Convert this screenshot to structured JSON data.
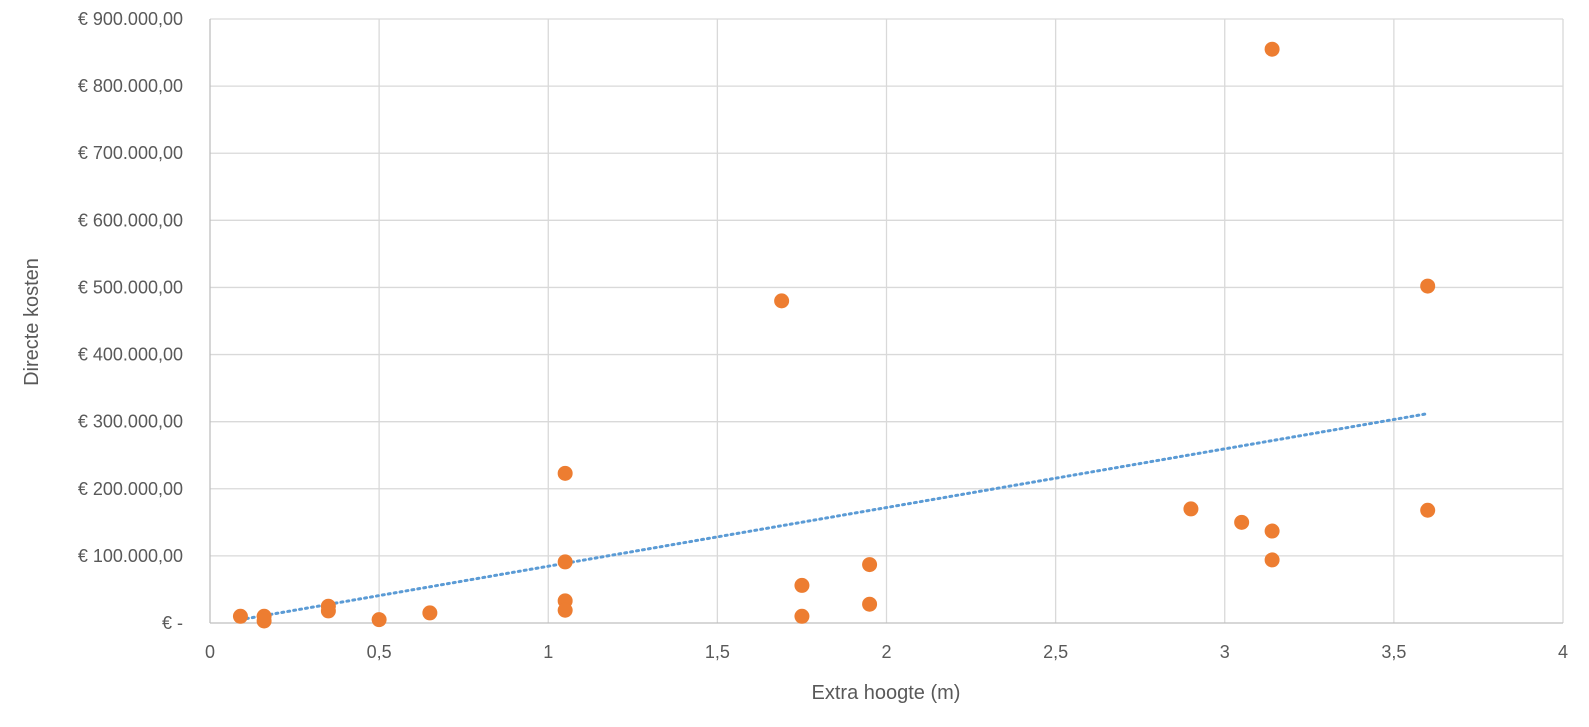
{
  "chart_data": {
    "type": "scatter",
    "title": "",
    "xlabel": "Extra hoogte (m)",
    "ylabel": "Directe kosten",
    "xlim": [
      0,
      4
    ],
    "ylim": [
      0,
      900000
    ],
    "x_ticks": [
      {
        "value": 0,
        "label": "0"
      },
      {
        "value": 0.5,
        "label": "0,5"
      },
      {
        "value": 1,
        "label": "1"
      },
      {
        "value": 1.5,
        "label": "1,5"
      },
      {
        "value": 2,
        "label": "2"
      },
      {
        "value": 2.5,
        "label": "2,5"
      },
      {
        "value": 3,
        "label": "3"
      },
      {
        "value": 3.5,
        "label": "3,5"
      },
      {
        "value": 4,
        "label": "4"
      }
    ],
    "y_ticks": [
      {
        "value": 0,
        "label": "€ -"
      },
      {
        "value": 100000,
        "label": "€ 100.000,00"
      },
      {
        "value": 200000,
        "label": "€ 200.000,00"
      },
      {
        "value": 300000,
        "label": "€ 300.000,00"
      },
      {
        "value": 400000,
        "label": "€ 400.000,00"
      },
      {
        "value": 500000,
        "label": "€ 500.000,00"
      },
      {
        "value": 600000,
        "label": "€ 600.000,00"
      },
      {
        "value": 700000,
        "label": "€ 700.000,00"
      },
      {
        "value": 800000,
        "label": "€ 800.000,00"
      },
      {
        "value": 900000,
        "label": "€ 900.000,00"
      }
    ],
    "grid": true,
    "legend": "none",
    "series": [
      {
        "color": "#ed7d31",
        "points": [
          [
            0.09,
            10000
          ],
          [
            0.16,
            10000
          ],
          [
            0.16,
            3000
          ],
          [
            0.35,
            25000
          ],
          [
            0.35,
            18000
          ],
          [
            0.5,
            5000
          ],
          [
            0.65,
            15000
          ],
          [
            1.05,
            223000
          ],
          [
            1.05,
            91000
          ],
          [
            1.05,
            33000
          ],
          [
            1.05,
            19000
          ],
          [
            1.69,
            480000
          ],
          [
            1.75,
            56000
          ],
          [
            1.75,
            10000
          ],
          [
            1.95,
            87000
          ],
          [
            1.95,
            28000
          ],
          [
            2.9,
            170000
          ],
          [
            3.05,
            150000
          ],
          [
            3.14,
            855000
          ],
          [
            3.14,
            137000
          ],
          [
            3.14,
            94000
          ],
          [
            3.6,
            502000
          ],
          [
            3.6,
            168000
          ]
        ]
      }
    ],
    "trendline": {
      "type": "linear",
      "style": "dotted",
      "color": "#5b9bd5",
      "from": [
        0.09,
        5000
      ],
      "to": [
        3.6,
        312000
      ]
    }
  }
}
